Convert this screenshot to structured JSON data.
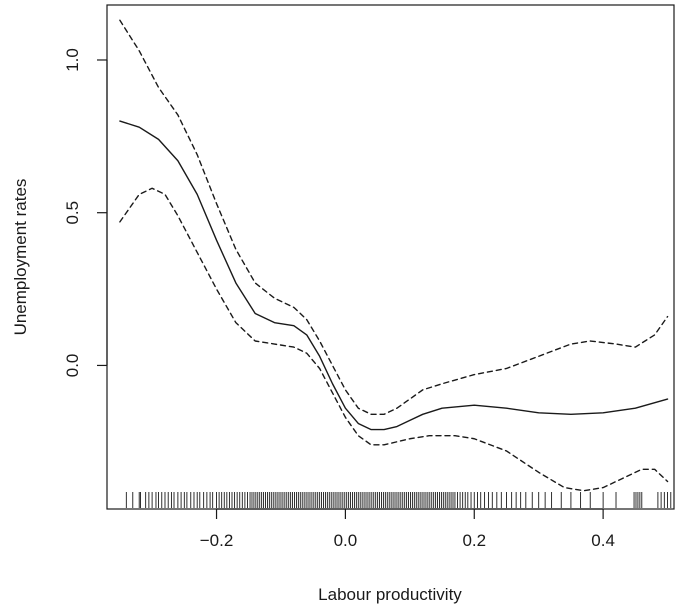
{
  "chart_data": {
    "type": "line",
    "title": "",
    "xlabel": "Labour productivity",
    "ylabel": "Unemployment rates",
    "xlim": [
      -0.37,
      0.51
    ],
    "ylim": [
      -0.47,
      1.18
    ],
    "x_ticks": [
      -0.2,
      0.0,
      0.2,
      0.4
    ],
    "x_tick_labels": [
      "−0.2",
      "0.0",
      "0.2",
      "0.4"
    ],
    "y_ticks": [
      0.0,
      0.5,
      1.0
    ],
    "y_tick_labels": [
      "0.0",
      "0.5",
      "1.0"
    ],
    "grid": false,
    "legend": "none",
    "series": [
      {
        "style": "solid",
        "x": [
          -0.35,
          -0.32,
          -0.29,
          -0.26,
          -0.23,
          -0.2,
          -0.17,
          -0.14,
          -0.11,
          -0.08,
          -0.06,
          -0.04,
          -0.02,
          0.0,
          0.02,
          0.04,
          0.06,
          0.08,
          0.1,
          0.12,
          0.15,
          0.2,
          0.25,
          0.3,
          0.35,
          0.4,
          0.45,
          0.5
        ],
        "y": [
          0.8,
          0.78,
          0.74,
          0.67,
          0.56,
          0.41,
          0.27,
          0.17,
          0.14,
          0.13,
          0.1,
          0.03,
          -0.06,
          -0.14,
          -0.19,
          -0.21,
          -0.21,
          -0.2,
          -0.18,
          -0.16,
          -0.14,
          -0.13,
          -0.14,
          -0.155,
          -0.16,
          -0.155,
          -0.14,
          -0.11
        ]
      },
      {
        "style": "dashed",
        "x": [
          -0.35,
          -0.32,
          -0.29,
          -0.26,
          -0.23,
          -0.2,
          -0.17,
          -0.14,
          -0.11,
          -0.08,
          -0.06,
          -0.04,
          -0.02,
          0.0,
          0.02,
          0.04,
          0.06,
          0.08,
          0.1,
          0.12,
          0.15,
          0.2,
          0.25,
          0.3,
          0.35,
          0.38,
          0.42,
          0.45,
          0.48,
          0.5
        ],
        "y": [
          1.13,
          1.03,
          0.91,
          0.82,
          0.69,
          0.53,
          0.38,
          0.27,
          0.22,
          0.19,
          0.15,
          0.08,
          0.0,
          -0.08,
          -0.14,
          -0.16,
          -0.16,
          -0.14,
          -0.11,
          -0.08,
          -0.06,
          -0.03,
          -0.01,
          0.03,
          0.07,
          0.08,
          0.07,
          0.06,
          0.1,
          0.16
        ]
      },
      {
        "style": "dashed",
        "x": [
          -0.35,
          -0.32,
          -0.3,
          -0.28,
          -0.26,
          -0.23,
          -0.2,
          -0.17,
          -0.14,
          -0.11,
          -0.08,
          -0.06,
          -0.04,
          -0.02,
          0.0,
          0.02,
          0.04,
          0.06,
          0.08,
          0.1,
          0.13,
          0.17,
          0.2,
          0.25,
          0.3,
          0.34,
          0.37,
          0.4,
          0.43,
          0.46,
          0.48,
          0.5
        ],
        "y": [
          0.47,
          0.56,
          0.58,
          0.56,
          0.49,
          0.37,
          0.25,
          0.14,
          0.08,
          0.07,
          0.06,
          0.04,
          -0.01,
          -0.09,
          -0.17,
          -0.23,
          -0.26,
          -0.26,
          -0.25,
          -0.24,
          -0.23,
          -0.23,
          -0.24,
          -0.28,
          -0.35,
          -0.4,
          -0.41,
          -0.4,
          -0.37,
          -0.34,
          -0.34,
          -0.38
        ]
      }
    ],
    "rug": {
      "x": [
        -0.34,
        -0.33,
        -0.32,
        -0.318,
        -0.31,
        -0.305,
        -0.3,
        -0.294,
        -0.29,
        -0.285,
        -0.28,
        -0.275,
        -0.27,
        -0.266,
        -0.26,
        -0.255,
        -0.25,
        -0.246,
        -0.24,
        -0.235,
        -0.23,
        -0.226,
        -0.22,
        -0.215,
        -0.21,
        -0.206,
        -0.2,
        -0.196,
        -0.192,
        -0.188,
        -0.184,
        -0.18,
        -0.176,
        -0.172,
        -0.168,
        -0.164,
        -0.16,
        -0.156,
        -0.152,
        -0.148,
        -0.145,
        -0.142,
        -0.139,
        -0.136,
        -0.133,
        -0.13,
        -0.127,
        -0.124,
        -0.121,
        -0.118,
        -0.115,
        -0.112,
        -0.109,
        -0.106,
        -0.103,
        -0.1,
        -0.097,
        -0.094,
        -0.091,
        -0.088,
        -0.085,
        -0.082,
        -0.079,
        -0.076,
        -0.073,
        -0.07,
        -0.067,
        -0.064,
        -0.061,
        -0.058,
        -0.055,
        -0.052,
        -0.049,
        -0.046,
        -0.043,
        -0.04,
        -0.037,
        -0.034,
        -0.031,
        -0.028,
        -0.025,
        -0.022,
        -0.019,
        -0.016,
        -0.013,
        -0.01,
        -0.007,
        -0.004,
        -0.001,
        0.002,
        0.005,
        0.008,
        0.011,
        0.014,
        0.017,
        0.02,
        0.023,
        0.026,
        0.029,
        0.032,
        0.035,
        0.038,
        0.041,
        0.044,
        0.047,
        0.05,
        0.053,
        0.056,
        0.059,
        0.062,
        0.065,
        0.068,
        0.071,
        0.074,
        0.077,
        0.08,
        0.083,
        0.086,
        0.089,
        0.092,
        0.095,
        0.098,
        0.101,
        0.104,
        0.107,
        0.11,
        0.113,
        0.116,
        0.119,
        0.122,
        0.125,
        0.128,
        0.131,
        0.134,
        0.137,
        0.14,
        0.143,
        0.146,
        0.149,
        0.152,
        0.155,
        0.158,
        0.161,
        0.164,
        0.167,
        0.17,
        0.174,
        0.178,
        0.182,
        0.186,
        0.19,
        0.195,
        0.2,
        0.205,
        0.21,
        0.216,
        0.222,
        0.228,
        0.235,
        0.242,
        0.25,
        0.258,
        0.265,
        0.272,
        0.28,
        0.29,
        0.3,
        0.31,
        0.32,
        0.335,
        0.35,
        0.365,
        0.38,
        0.4,
        0.42,
        0.448,
        0.451,
        0.454,
        0.457,
        0.46,
        0.485,
        0.49,
        0.495,
        0.5,
        0.505
      ]
    }
  }
}
